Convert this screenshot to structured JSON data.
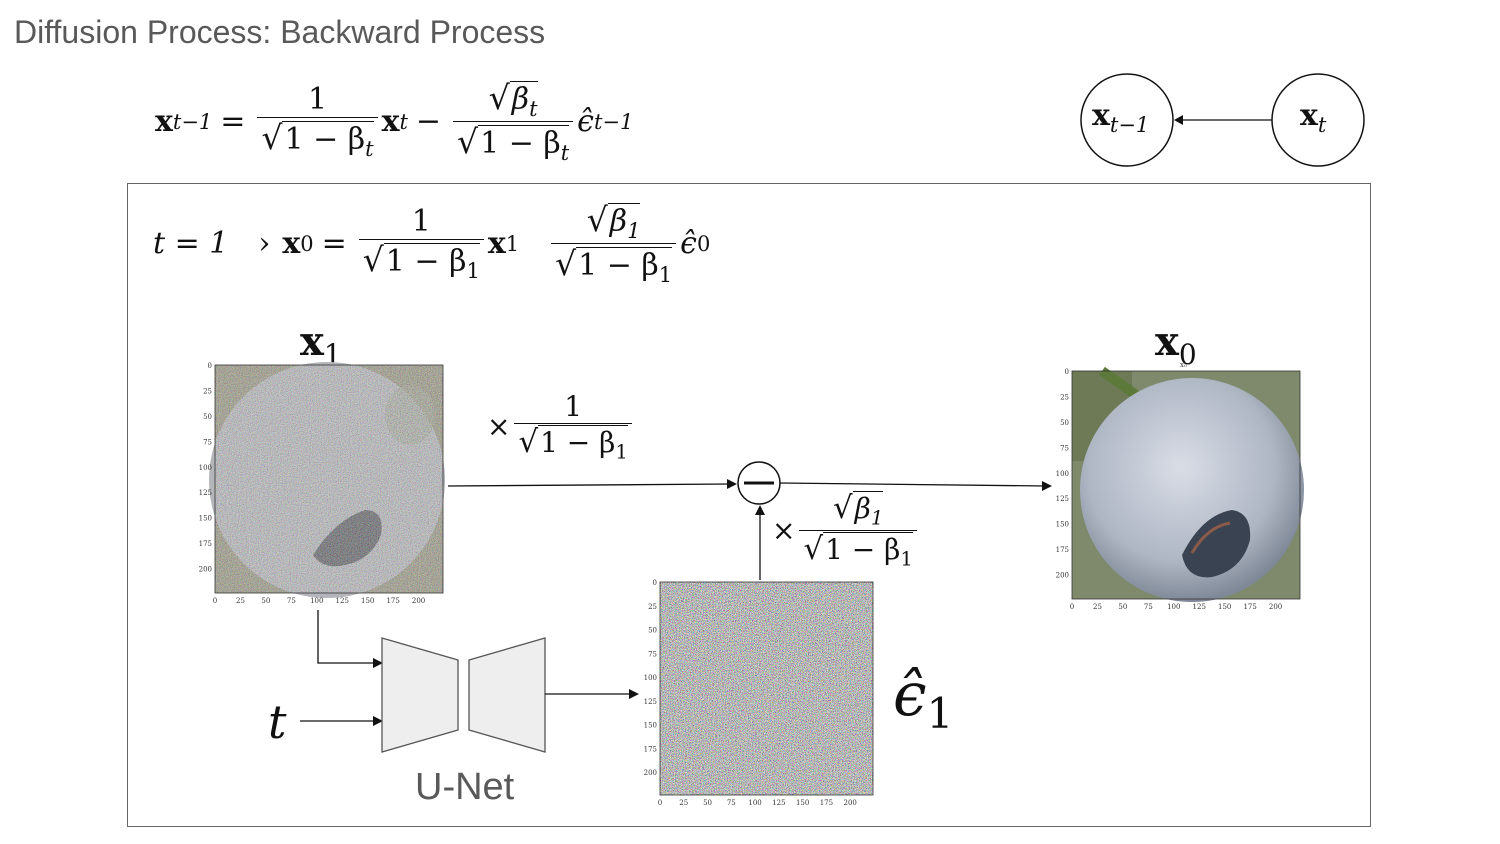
{
  "title": "Diffusion Process: Backward Process",
  "equation": {
    "lhs": "x",
    "lhs_sub": "t−1",
    "eq": "=",
    "frac1_num": "1",
    "frac1_den": "1 − β",
    "frac1_den_sub": "t",
    "term": "x",
    "term_sub": "t",
    "minus": "−",
    "frac2_num": "β",
    "frac2_num_sub": "t",
    "frac2_den": "1 − β",
    "frac2_den_sub": "t",
    "eps": "ϵ̂",
    "eps_sub": "t−1"
  },
  "graph": {
    "left_node": "x",
    "left_node_sub": "t−1",
    "right_node": "x",
    "right_node_sub": "t"
  },
  "step_equation": {
    "cond": "t = 1",
    "arrow": "›",
    "lhs": "x",
    "lhs_sub": "0",
    "eq": "=",
    "frac1_num": "1",
    "frac1_den": "1 − β",
    "frac1_den_sub": "1",
    "term": "x",
    "term_sub": "1",
    "frac2_num": "β",
    "frac2_num_sub": "1",
    "frac2_den": "1 − β",
    "frac2_den_sub": "1",
    "eps": "ϵ̂",
    "eps_sub": "0"
  },
  "labels": {
    "x1": "x",
    "x1_sub": "1",
    "x0": "x",
    "x0_sub": "0",
    "x0_small": "x₀",
    "eps": "ϵ̂",
    "eps_sub": "1",
    "t": "t",
    "unet": "U-Net",
    "times": "×",
    "scale1_num": "1",
    "scale1_den": "1 − β",
    "scale1_den_sub": "1",
    "scale2_num": "β",
    "scale2_num_sub": "1",
    "scale2_den": "1 − β",
    "scale2_den_sub": "1"
  },
  "axes": {
    "x1_ticks_x": [
      "0",
      "25",
      "50",
      "75",
      "100",
      "125",
      "150",
      "175",
      "200"
    ],
    "x1_ticks_y": [
      "0",
      "25",
      "50",
      "75",
      "100",
      "125",
      "150",
      "175",
      "200"
    ],
    "eps_ticks_x": [
      "0",
      "25",
      "50",
      "75",
      "100",
      "125",
      "150",
      "175",
      "200"
    ],
    "eps_ticks_y": [
      "0",
      "25",
      "50",
      "75",
      "100",
      "125",
      "150",
      "175",
      "200"
    ],
    "x0_ticks_x": [
      "0",
      "25",
      "50",
      "75",
      "100",
      "125",
      "150",
      "175",
      "200"
    ],
    "x0_ticks_y": [
      "0",
      "25",
      "50",
      "75",
      "100",
      "125",
      "150",
      "175",
      "200"
    ]
  },
  "colors": {
    "text_gray": "#595959",
    "unet_fill": "#eeeeee",
    "unet_stroke": "#555555",
    "berry": "#b9c1cc"
  }
}
